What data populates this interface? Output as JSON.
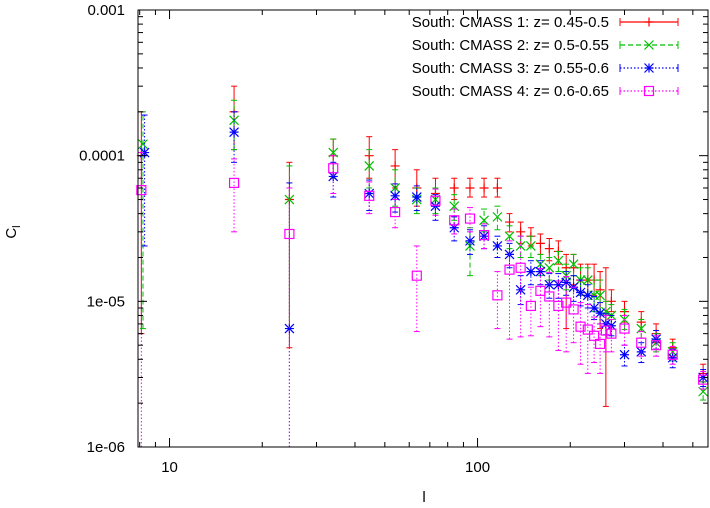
{
  "chart_data": {
    "type": "scatter",
    "title": "",
    "xlabel": "l",
    "ylabel": "C",
    "ylabel_subscript": "l",
    "xscale": "log",
    "yscale": "log",
    "xlim": [
      7.9,
      560
    ],
    "ylim": [
      1e-06,
      0.001
    ],
    "x_tick_labels": [
      {
        "value": 10,
        "label": "10"
      },
      {
        "value": 100,
        "label": "100"
      }
    ],
    "y_tick_labels": [
      {
        "value": 1e-06,
        "label": "1e-06"
      },
      {
        "value": 1e-05,
        "label": "1e-05"
      },
      {
        "value": 0.0001,
        "label": "0.0001"
      },
      {
        "value": 0.001,
        "label": "0.001"
      }
    ],
    "legend_position": "top-right",
    "series": [
      {
        "name": "South: CMASS 1: z= 0.45-0.5",
        "color": "#ff0000",
        "marker": "plus",
        "error_style": "solid",
        "points": [
          {
            "x": 8.1,
            "y": 0.0001,
            "lo": 6e-06,
            "hi": 0.0002
          },
          {
            "x": 16.2,
            "y": 0.0002,
            "lo": 0.00011,
            "hi": 0.0003
          },
          {
            "x": 24.5,
            "y": 5e-05,
            "lo": 4.8e-06,
            "hi": 9e-05
          },
          {
            "x": 34,
            "y": 0.0001,
            "lo": 7e-05,
            "hi": 0.00013
          },
          {
            "x": 44.5,
            "y": 0.0001,
            "lo": 7e-05,
            "hi": 0.000135
          },
          {
            "x": 54,
            "y": 8.5e-05,
            "lo": 6e-05,
            "hi": 0.00011
          },
          {
            "x": 63.5,
            "y": 6e-05,
            "lo": 4.5e-05,
            "hi": 8e-05
          },
          {
            "x": 73,
            "y": 5.5e-05,
            "lo": 4.5e-05,
            "hi": 7e-05
          },
          {
            "x": 84,
            "y": 6e-05,
            "lo": 5e-05,
            "hi": 7e-05
          },
          {
            "x": 94.5,
            "y": 6e-05,
            "lo": 5.2e-05,
            "hi": 7e-05
          },
          {
            "x": 105,
            "y": 6e-05,
            "lo": 5.2e-05,
            "hi": 7e-05
          },
          {
            "x": 116,
            "y": 6e-05,
            "lo": 5.2e-05,
            "hi": 7e-05
          },
          {
            "x": 127,
            "y": 3.5e-05,
            "lo": 3e-05,
            "hi": 4e-05
          },
          {
            "x": 138,
            "y": 3e-05,
            "lo": 2.5e-05,
            "hi": 3.5e-05
          },
          {
            "x": 149,
            "y": 2.8e-05,
            "lo": 2.4e-05,
            "hi": 3.2e-05
          },
          {
            "x": 160,
            "y": 2.5e-05,
            "lo": 2.1e-05,
            "hi": 2.9e-05
          },
          {
            "x": 171,
            "y": 2.3e-05,
            "lo": 1.9e-05,
            "hi": 2.7e-05
          },
          {
            "x": 183,
            "y": 2.2e-05,
            "lo": 1.8e-05,
            "hi": 2.6e-05
          },
          {
            "x": 194,
            "y": 1.7e-05,
            "lo": 6.5e-06,
            "hi": 2.1e-05
          },
          {
            "x": 205,
            "y": 1.7e-05,
            "lo": 1.3e-05,
            "hi": 2.1e-05
          },
          {
            "x": 216,
            "y": 1.4e-05,
            "lo": 1.1e-05,
            "hi": 1.8e-05
          },
          {
            "x": 228,
            "y": 1.4e-05,
            "lo": 1.1e-05,
            "hi": 1.8e-05
          },
          {
            "x": 239,
            "y": 1.4e-05,
            "lo": 1.1e-05,
            "hi": 1.8e-05
          },
          {
            "x": 250,
            "y": 1.2e-05,
            "lo": 6.5e-06,
            "hi": 1.6e-05
          },
          {
            "x": 261,
            "y": 8e-06,
            "lo": 1.9e-06,
            "hi": 1.7e-05
          },
          {
            "x": 272,
            "y": 1e-05,
            "lo": 8.5e-06,
            "hi": 1.2e-05
          },
          {
            "x": 300,
            "y": 8.5e-06,
            "lo": 7.2e-06,
            "hi": 1e-05
          },
          {
            "x": 340,
            "y": 7.2e-06,
            "lo": 6.2e-06,
            "hi": 8.5e-06
          },
          {
            "x": 380,
            "y": 6e-06,
            "lo": 5.2e-06,
            "hi": 7e-06
          },
          {
            "x": 430,
            "y": 4.8e-06,
            "lo": 4.2e-06,
            "hi": 5.5e-06
          },
          {
            "x": 540,
            "y": 3.2e-06,
            "lo": 2.8e-06,
            "hi": 3.7e-06
          }
        ]
      },
      {
        "name": "South: CMASS 2: z= 0.5-0.55",
        "color": "#00c000",
        "marker": "x",
        "error_style": "dashed",
        "points": [
          {
            "x": 8.2,
            "y": 0.00012,
            "lo": 6.5e-06,
            "hi": 0.0002
          },
          {
            "x": 16.2,
            "y": 0.000175,
            "lo": 0.00011,
            "hi": 0.00024
          },
          {
            "x": 24.5,
            "y": 5e-05,
            "lo": 6.5e-06,
            "hi": 8.5e-05
          },
          {
            "x": 34,
            "y": 0.000105,
            "lo": 7e-05,
            "hi": 0.00013
          },
          {
            "x": 44.5,
            "y": 8.5e-05,
            "lo": 6e-05,
            "hi": 0.00011
          },
          {
            "x": 54,
            "y": 6e-05,
            "lo": 4.5e-05,
            "hi": 8e-05
          },
          {
            "x": 63.5,
            "y": 5e-05,
            "lo": 4e-05,
            "hi": 6e-05
          },
          {
            "x": 73,
            "y": 5e-05,
            "lo": 4e-05,
            "hi": 6e-05
          },
          {
            "x": 84,
            "y": 4.5e-05,
            "lo": 3.6e-05,
            "hi": 5.4e-05
          },
          {
            "x": 94.5,
            "y": 2.4e-05,
            "lo": 1.5e-05,
            "hi": 3.2e-05
          },
          {
            "x": 105,
            "y": 3.6e-05,
            "lo": 3e-05,
            "hi": 4.3e-05
          },
          {
            "x": 116,
            "y": 3.8e-05,
            "lo": 3.1e-05,
            "hi": 4.5e-05
          },
          {
            "x": 127,
            "y": 2.8e-05,
            "lo": 2.3e-05,
            "hi": 3.3e-05
          },
          {
            "x": 138,
            "y": 2.4e-05,
            "lo": 2e-05,
            "hi": 2.8e-05
          },
          {
            "x": 149,
            "y": 2.4e-05,
            "lo": 2e-05,
            "hi": 2.8e-05
          },
          {
            "x": 160,
            "y": 1.8e-05,
            "lo": 1.5e-05,
            "hi": 2.1e-05
          },
          {
            "x": 171,
            "y": 1.7e-05,
            "lo": 1.4e-05,
            "hi": 2e-05
          },
          {
            "x": 183,
            "y": 1.9e-05,
            "lo": 1.6e-05,
            "hi": 2.2e-05
          },
          {
            "x": 194,
            "y": 1.5e-05,
            "lo": 1.2e-05,
            "hi": 1.8e-05
          },
          {
            "x": 205,
            "y": 1.8e-05,
            "lo": 1.5e-05,
            "hi": 2.1e-05
          },
          {
            "x": 216,
            "y": 1.4e-05,
            "lo": 1.1e-05,
            "hi": 1.7e-05
          },
          {
            "x": 228,
            "y": 1.4e-05,
            "lo": 1.1e-05,
            "hi": 1.7e-05
          },
          {
            "x": 239,
            "y": 1.1e-05,
            "lo": 8.5e-06,
            "hi": 1.4e-05
          },
          {
            "x": 250,
            "y": 1.1e-05,
            "lo": 8.5e-06,
            "hi": 1.4e-05
          },
          {
            "x": 261,
            "y": 8.5e-06,
            "lo": 7e-06,
            "hi": 1e-05
          },
          {
            "x": 272,
            "y": 8e-06,
            "lo": 6.8e-06,
            "hi": 9.5e-06
          },
          {
            "x": 300,
            "y": 7.5e-06,
            "lo": 6.4e-06,
            "hi": 8.8e-06
          },
          {
            "x": 340,
            "y": 6.5e-06,
            "lo": 5.6e-06,
            "hi": 7.5e-06
          },
          {
            "x": 380,
            "y": 5.2e-06,
            "lo": 4.5e-06,
            "hi": 6e-06
          },
          {
            "x": 430,
            "y": 4.5e-06,
            "lo": 3.9e-06,
            "hi": 5.2e-06
          },
          {
            "x": 540,
            "y": 2.4e-06,
            "lo": 2.1e-06,
            "hi": 2.8e-06
          }
        ]
      },
      {
        "name": "South: CMASS 3: z= 0.55-0.6",
        "color": "#0000ff",
        "marker": "star",
        "error_style": "dotted",
        "points": [
          {
            "x": 8.3,
            "y": 0.000105,
            "lo": 2.4e-05,
            "hi": 0.00019
          },
          {
            "x": 16.2,
            "y": 0.000145,
            "lo": 9e-05,
            "hi": 0.0002
          },
          {
            "x": 24.5,
            "y": 6.5e-06,
            "lo": 1e-06,
            "hi": 6.5e-05
          },
          {
            "x": 34,
            "y": 7.2e-05,
            "lo": 5.2e-05,
            "hi": 9e-05
          },
          {
            "x": 44.5,
            "y": 5.5e-05,
            "lo": 4.2e-05,
            "hi": 6.8e-05
          },
          {
            "x": 54,
            "y": 5.3e-05,
            "lo": 4.1e-05,
            "hi": 6.4e-05
          },
          {
            "x": 63.5,
            "y": 5.2e-05,
            "lo": 4.2e-05,
            "hi": 6.2e-05
          },
          {
            "x": 73,
            "y": 4.5e-05,
            "lo": 3.6e-05,
            "hi": 5.4e-05
          },
          {
            "x": 84,
            "y": 3.2e-05,
            "lo": 2.6e-05,
            "hi": 3.8e-05
          },
          {
            "x": 94.5,
            "y": 2.6e-05,
            "lo": 2.1e-05,
            "hi": 3.1e-05
          },
          {
            "x": 105,
            "y": 2.8e-05,
            "lo": 2.3e-05,
            "hi": 3.3e-05
          },
          {
            "x": 116,
            "y": 2.4e-05,
            "lo": 2e-05,
            "hi": 2.8e-05
          },
          {
            "x": 127,
            "y": 2.1e-05,
            "lo": 1.7e-05,
            "hi": 2.5e-05
          },
          {
            "x": 138,
            "y": 1.2e-05,
            "lo": 9.5e-06,
            "hi": 1.5e-05
          },
          {
            "x": 149,
            "y": 1.6e-05,
            "lo": 1.3e-05,
            "hi": 1.9e-05
          },
          {
            "x": 160,
            "y": 1.6e-05,
            "lo": 1.3e-05,
            "hi": 1.9e-05
          },
          {
            "x": 171,
            "y": 1.3e-05,
            "lo": 1.05e-05,
            "hi": 1.55e-05
          },
          {
            "x": 183,
            "y": 1.3e-05,
            "lo": 1.05e-05,
            "hi": 1.55e-05
          },
          {
            "x": 194,
            "y": 1.35e-05,
            "lo": 1.1e-05,
            "hi": 1.6e-05
          },
          {
            "x": 205,
            "y": 1.25e-05,
            "lo": 1e-05,
            "hi": 1.5e-05
          },
          {
            "x": 216,
            "y": 1.15e-05,
            "lo": 9.3e-06,
            "hi": 1.4e-05
          },
          {
            "x": 228,
            "y": 1.1e-05,
            "lo": 9e-06,
            "hi": 1.3e-05
          },
          {
            "x": 239,
            "y": 9e-06,
            "lo": 7.5e-06,
            "hi": 1.08e-05
          },
          {
            "x": 250,
            "y": 8.3e-06,
            "lo": 7e-06,
            "hi": 9.8e-06
          },
          {
            "x": 261,
            "y": 7e-06,
            "lo": 5.9e-06,
            "hi": 8.2e-06
          },
          {
            "x": 272,
            "y": 6.8e-06,
            "lo": 5.8e-06,
            "hi": 8e-06
          },
          {
            "x": 300,
            "y": 4.3e-06,
            "lo": 3.6e-06,
            "hi": 5e-06
          },
          {
            "x": 340,
            "y": 4.5e-06,
            "lo": 3.8e-06,
            "hi": 5.2e-06
          },
          {
            "x": 380,
            "y": 5.5e-06,
            "lo": 4.7e-06,
            "hi": 6.3e-06
          },
          {
            "x": 430,
            "y": 4.1e-06,
            "lo": 3.5e-06,
            "hi": 4.7e-06
          },
          {
            "x": 540,
            "y": 3e-06,
            "lo": 2.6e-06,
            "hi": 3.4e-06
          }
        ]
      },
      {
        "name": "South: CMASS 4: z= 0.6-0.65",
        "color": "#ff00ff",
        "marker": "square",
        "error_style": "dotted",
        "points": [
          {
            "x": 8.1,
            "y": 5.8e-05,
            "lo": 1e-06,
            "hi": 0.000105
          },
          {
            "x": 16.2,
            "y": 6.5e-05,
            "lo": 3e-05,
            "hi": 9.5e-05
          },
          {
            "x": 24.5,
            "y": 2.9e-05,
            "lo": 1e-06,
            "hi": 6e-05
          },
          {
            "x": 34,
            "y": 8.2e-05,
            "lo": 5.5e-05,
            "hi": 0.0001
          },
          {
            "x": 44.5,
            "y": 5.3e-05,
            "lo": 4e-05,
            "hi": 6.6e-05
          },
          {
            "x": 54,
            "y": 4.1e-05,
            "lo": 3.2e-05,
            "hi": 5e-05
          },
          {
            "x": 63.5,
            "y": 1.5e-05,
            "lo": 6.2e-06,
            "hi": 2.4e-05
          },
          {
            "x": 73,
            "y": 4.9e-05,
            "lo": 3.9e-05,
            "hi": 5.9e-05
          },
          {
            "x": 84,
            "y": 3.6e-05,
            "lo": 2.9e-05,
            "hi": 4.3e-05
          },
          {
            "x": 94.5,
            "y": 3.7e-05,
            "lo": 3e-05,
            "hi": 4.4e-05
          },
          {
            "x": 105,
            "y": 2.85e-05,
            "lo": 2.3e-05,
            "hi": 3.4e-05
          },
          {
            "x": 116,
            "y": 1.1e-05,
            "lo": 6.5e-06,
            "hi": 1.6e-05
          },
          {
            "x": 127,
            "y": 1.65e-05,
            "lo": 5.5e-06,
            "hi": 2.6e-05
          },
          {
            "x": 138,
            "y": 1.7e-05,
            "lo": 5.7e-06,
            "hi": 2.8e-05
          },
          {
            "x": 149,
            "y": 9.3e-06,
            "lo": 5.8e-06,
            "hi": 1.25e-05
          },
          {
            "x": 160,
            "y": 1.18e-05,
            "lo": 6.7e-06,
            "hi": 1.68e-05
          },
          {
            "x": 171,
            "y": 1.08e-05,
            "lo": 5.7e-06,
            "hi": 1.58e-05
          },
          {
            "x": 183,
            "y": 9.3e-06,
            "lo": 4.6e-06,
            "hi": 1.38e-05
          },
          {
            "x": 194,
            "y": 9.8e-06,
            "lo": 4.5e-06,
            "hi": 1.48e-05
          },
          {
            "x": 205,
            "y": 8.8e-06,
            "lo": 5.2e-06,
            "hi": 1.25e-05
          },
          {
            "x": 216,
            "y": 6.7e-06,
            "lo": 3.7e-06,
            "hi": 9.8e-06
          },
          {
            "x": 228,
            "y": 6.4e-06,
            "lo": 3.2e-06,
            "hi": 9.5e-06
          },
          {
            "x": 239,
            "y": 5.8e-06,
            "lo": 3.8e-06,
            "hi": 7.8e-06
          },
          {
            "x": 250,
            "y": 5.1e-06,
            "lo": 3.2e-06,
            "hi": 7e-06
          },
          {
            "x": 261,
            "y": 6.3e-06,
            "lo": 4.5e-06,
            "hi": 8e-06
          },
          {
            "x": 272,
            "y": 6e-06,
            "lo": 4.5e-06,
            "hi": 7.5e-06
          },
          {
            "x": 300,
            "y": 6.5e-06,
            "lo": 5e-06,
            "hi": 8e-06
          },
          {
            "x": 340,
            "y": 5.2e-06,
            "lo": 4.2e-06,
            "hi": 6.2e-06
          },
          {
            "x": 380,
            "y": 5e-06,
            "lo": 4.2e-06,
            "hi": 5.8e-06
          },
          {
            "x": 430,
            "y": 4.3e-06,
            "lo": 3.7e-06,
            "hi": 4.9e-06
          },
          {
            "x": 540,
            "y": 2.9e-06,
            "lo": 2.5e-06,
            "hi": 3.3e-06
          }
        ]
      }
    ]
  }
}
